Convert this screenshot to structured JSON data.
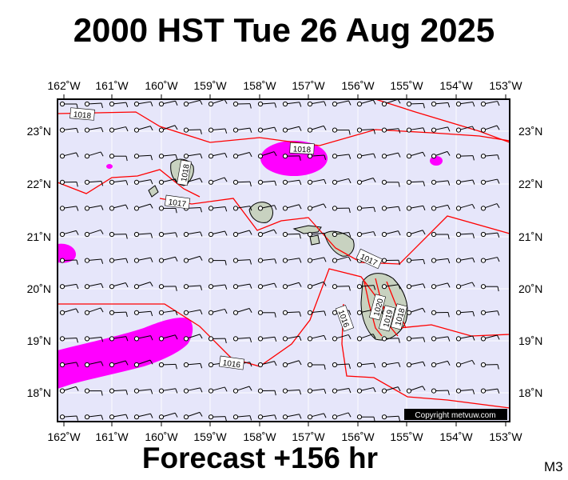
{
  "header": {
    "title": "2000 HST Tue 26 Aug 2025"
  },
  "footer": {
    "forecast": "Forecast +156 hr",
    "model": "M3"
  },
  "map": {
    "lon_labels": [
      "162˚W",
      "161˚W",
      "160˚W",
      "159˚W",
      "158˚W",
      "157˚W",
      "156˚W",
      "155˚W",
      "154˚W",
      "153˚W"
    ],
    "lat_labels": [
      "23˚N",
      "22˚N",
      "21˚N",
      "20˚N",
      "19˚N",
      "18˚N"
    ],
    "isobar_labels": [
      "1018",
      "1018",
      "1018",
      "1017",
      "1017",
      "1016",
      "1016",
      "1020",
      "1019",
      "1018"
    ],
    "copyright": "Copyright metvuw.com",
    "colors": {
      "background": "#e6e6fa",
      "isobar": "#ff0000",
      "rain": "#ff00ff",
      "land": "#c8d2c0"
    }
  }
}
